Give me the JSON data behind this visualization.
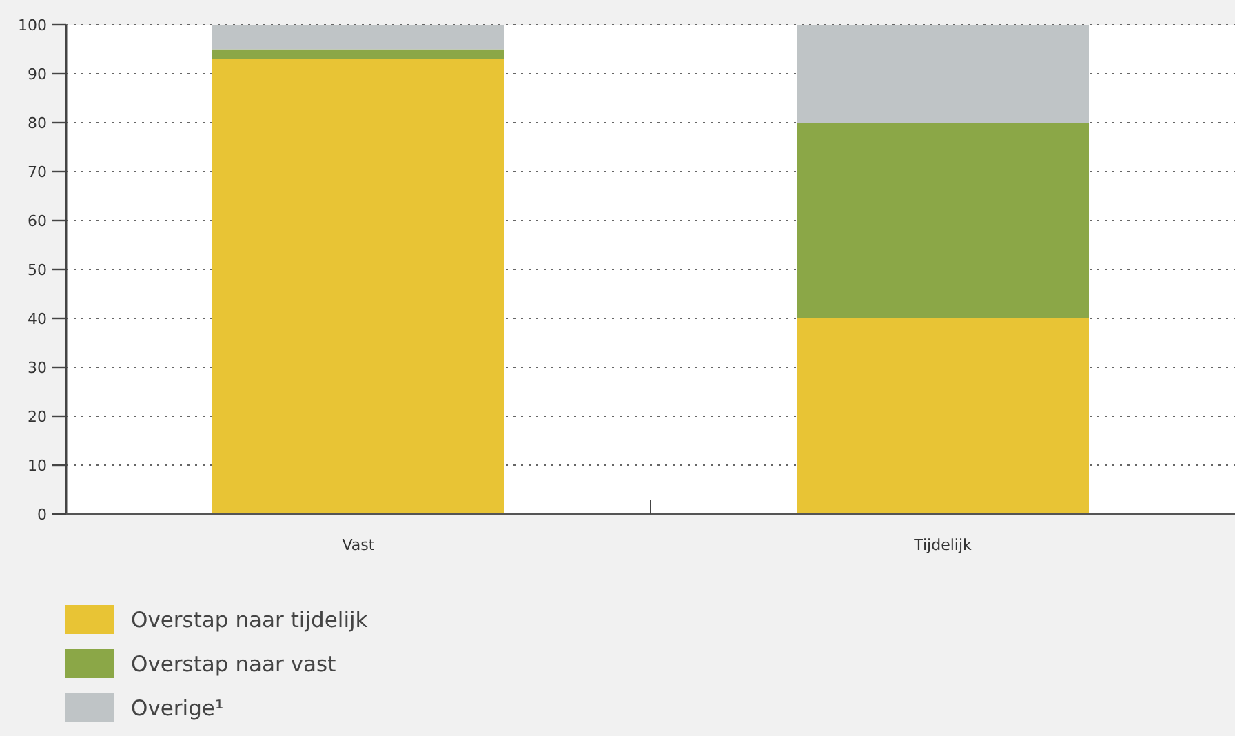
{
  "chart_data": {
    "type": "bar",
    "stacked": true,
    "categories": [
      "Vast",
      "Tijdelijk"
    ],
    "series": [
      {
        "name": "Overstap naar tijdelijk",
        "color": "#e8c435",
        "values": [
          93,
          40
        ]
      },
      {
        "name": "Overstap naar vast",
        "color": "#8ba747",
        "values": [
          2,
          40
        ]
      },
      {
        "name": "Overige¹",
        "color": "#bfc4c6",
        "values": [
          5,
          20
        ]
      }
    ],
    "ylim": [
      0,
      100
    ],
    "yticks": [
      0,
      10,
      20,
      30,
      40,
      50,
      60,
      70,
      80,
      90,
      100
    ],
    "grid": "y",
    "legend": "bottom"
  }
}
